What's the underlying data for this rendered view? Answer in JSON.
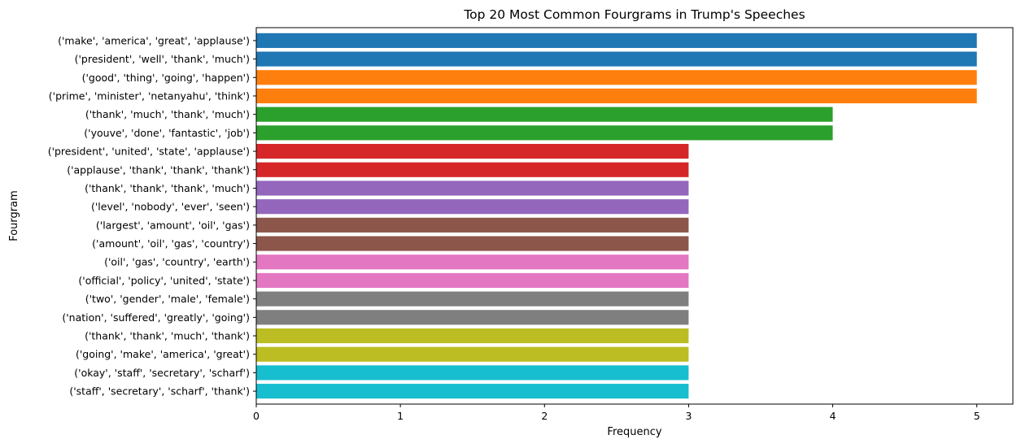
{
  "chart_data": {
    "type": "bar",
    "orientation": "horizontal",
    "title": "Top 20 Most Common Fourgrams in Trump's Speeches",
    "xlabel": "Frequency",
    "ylabel": "Fourgram",
    "xlim": [
      0,
      5.25
    ],
    "xticks": [
      "0",
      "1",
      "2",
      "3",
      "4",
      "5"
    ],
    "grid": false,
    "categories": [
      "('make', 'america', 'great', 'applause')",
      "('president', 'well', 'thank', 'much')",
      "('good', 'thing', 'going', 'happen')",
      "('prime', 'minister', 'netanyahu', 'think')",
      "('thank', 'much', 'thank', 'much')",
      "('youve', 'done', 'fantastic', 'job')",
      "('president', 'united', 'state', 'applause')",
      "('applause', 'thank', 'thank', 'thank')",
      "('thank', 'thank', 'thank', 'much')",
      "('level', 'nobody', 'ever', 'seen')",
      "('largest', 'amount', 'oil', 'gas')",
      "('amount', 'oil', 'gas', 'country')",
      "('oil', 'gas', 'country', 'earth')",
      "('official', 'policy', 'united', 'state')",
      "('two', 'gender', 'male', 'female')",
      "('nation', 'suffered', 'greatly', 'going')",
      "('thank', 'thank', 'much', 'thank')",
      "('going', 'make', 'america', 'great')",
      "('okay', 'staff', 'secretary', 'scharf')",
      "('staff', 'secretary', 'scharf', 'thank')"
    ],
    "values": [
      5,
      5,
      5,
      5,
      4,
      4,
      3,
      3,
      3,
      3,
      3,
      3,
      3,
      3,
      3,
      3,
      3,
      3,
      3,
      3
    ],
    "colors": [
      "#1f77b4",
      "#1f77b4",
      "#ff7f0e",
      "#ff7f0e",
      "#2ca02c",
      "#2ca02c",
      "#d62728",
      "#d62728",
      "#9467bd",
      "#9467bd",
      "#8c564b",
      "#8c564b",
      "#e377c2",
      "#e377c2",
      "#7f7f7f",
      "#7f7f7f",
      "#bcbd22",
      "#bcbd22",
      "#17becf",
      "#17becf"
    ]
  }
}
